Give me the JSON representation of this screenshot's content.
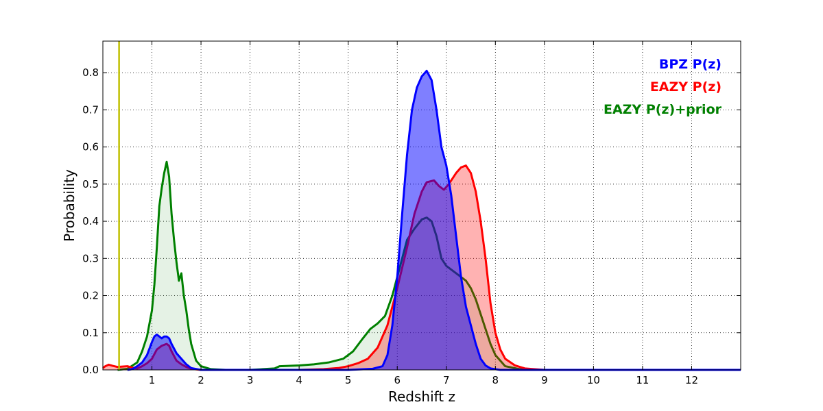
{
  "chart_data": {
    "type": "area",
    "xlabel": "Redshift z",
    "ylabel": "Probability",
    "xlim": [
      0,
      13
    ],
    "ylim": [
      0,
      0.885
    ],
    "xticks": [
      1,
      2,
      3,
      4,
      5,
      6,
      7,
      8,
      9,
      10,
      11,
      12
    ],
    "yticks": [
      0.0,
      0.1,
      0.2,
      0.3,
      0.4,
      0.5,
      0.6,
      0.7,
      0.8
    ],
    "grid": true,
    "legend_placement": "top-right",
    "vline": {
      "x": 0.33,
      "color": "#bfbf00"
    },
    "series": [
      {
        "name": "EAZY P(z)+prior",
        "color": "#008000",
        "fill": "#008000",
        "fill_opacity": 0.1,
        "points": [
          [
            0.3,
            0.0
          ],
          [
            0.5,
            0.003
          ],
          [
            0.7,
            0.02
          ],
          [
            0.8,
            0.05
          ],
          [
            0.9,
            0.09
          ],
          [
            1.0,
            0.16
          ],
          [
            1.05,
            0.23
          ],
          [
            1.1,
            0.33
          ],
          [
            1.15,
            0.44
          ],
          [
            1.2,
            0.49
          ],
          [
            1.25,
            0.53
          ],
          [
            1.3,
            0.56
          ],
          [
            1.35,
            0.52
          ],
          [
            1.4,
            0.42
          ],
          [
            1.45,
            0.35
          ],
          [
            1.5,
            0.29
          ],
          [
            1.55,
            0.24
          ],
          [
            1.6,
            0.26
          ],
          [
            1.65,
            0.2
          ],
          [
            1.7,
            0.16
          ],
          [
            1.75,
            0.11
          ],
          [
            1.8,
            0.07
          ],
          [
            1.9,
            0.025
          ],
          [
            2.0,
            0.01
          ],
          [
            2.2,
            0.002
          ],
          [
            2.5,
            0.0
          ],
          [
            3.0,
            0.0
          ],
          [
            3.5,
            0.004
          ],
          [
            3.6,
            0.01
          ],
          [
            4.0,
            0.012
          ],
          [
            4.3,
            0.015
          ],
          [
            4.6,
            0.02
          ],
          [
            4.9,
            0.03
          ],
          [
            5.1,
            0.05
          ],
          [
            5.3,
            0.085
          ],
          [
            5.45,
            0.11
          ],
          [
            5.6,
            0.125
          ],
          [
            5.75,
            0.145
          ],
          [
            5.9,
            0.2
          ],
          [
            6.0,
            0.25
          ],
          [
            6.1,
            0.3
          ],
          [
            6.2,
            0.35
          ],
          [
            6.35,
            0.38
          ],
          [
            6.5,
            0.405
          ],
          [
            6.6,
            0.41
          ],
          [
            6.7,
            0.4
          ],
          [
            6.8,
            0.36
          ],
          [
            6.9,
            0.3
          ],
          [
            7.0,
            0.28
          ],
          [
            7.2,
            0.26
          ],
          [
            7.4,
            0.24
          ],
          [
            7.5,
            0.22
          ],
          [
            7.6,
            0.19
          ],
          [
            7.7,
            0.15
          ],
          [
            7.8,
            0.11
          ],
          [
            7.9,
            0.07
          ],
          [
            8.0,
            0.04
          ],
          [
            8.2,
            0.01
          ],
          [
            8.5,
            0.002
          ],
          [
            9.0,
            0.0
          ],
          [
            13.0,
            0.0
          ]
        ]
      },
      {
        "name": "EAZY P(z)",
        "color": "#ff0000",
        "fill": "#ff0000",
        "fill_opacity": 0.3,
        "points": [
          [
            0.0,
            0.005
          ],
          [
            0.05,
            0.01
          ],
          [
            0.12,
            0.014
          ],
          [
            0.2,
            0.011
          ],
          [
            0.3,
            0.008
          ],
          [
            0.4,
            0.009
          ],
          [
            0.5,
            0.01
          ],
          [
            0.6,
            0.006
          ],
          [
            0.7,
            0.004
          ],
          [
            0.8,
            0.01
          ],
          [
            0.9,
            0.018
          ],
          [
            1.0,
            0.03
          ],
          [
            1.1,
            0.055
          ],
          [
            1.2,
            0.065
          ],
          [
            1.3,
            0.07
          ],
          [
            1.35,
            0.065
          ],
          [
            1.4,
            0.05
          ],
          [
            1.5,
            0.025
          ],
          [
            1.6,
            0.015
          ],
          [
            1.7,
            0.008
          ],
          [
            1.8,
            0.003
          ],
          [
            2.0,
            0.0
          ],
          [
            3.0,
            0.0
          ],
          [
            4.0,
            0.0
          ],
          [
            4.5,
            0.002
          ],
          [
            4.8,
            0.005
          ],
          [
            5.0,
            0.01
          ],
          [
            5.2,
            0.018
          ],
          [
            5.4,
            0.03
          ],
          [
            5.6,
            0.06
          ],
          [
            5.8,
            0.12
          ],
          [
            6.0,
            0.22
          ],
          [
            6.2,
            0.33
          ],
          [
            6.35,
            0.42
          ],
          [
            6.5,
            0.48
          ],
          [
            6.6,
            0.505
          ],
          [
            6.75,
            0.51
          ],
          [
            6.85,
            0.495
          ],
          [
            6.95,
            0.485
          ],
          [
            7.05,
            0.5
          ],
          [
            7.2,
            0.53
          ],
          [
            7.3,
            0.545
          ],
          [
            7.4,
            0.55
          ],
          [
            7.5,
            0.53
          ],
          [
            7.6,
            0.48
          ],
          [
            7.7,
            0.4
          ],
          [
            7.8,
            0.3
          ],
          [
            7.9,
            0.18
          ],
          [
            8.0,
            0.1
          ],
          [
            8.1,
            0.055
          ],
          [
            8.2,
            0.03
          ],
          [
            8.4,
            0.012
          ],
          [
            8.6,
            0.004
          ],
          [
            9.0,
            0.0
          ],
          [
            13.0,
            0.0
          ]
        ]
      },
      {
        "name": "BPZ P(z)",
        "color": "#0000ff",
        "fill": "#0000ff",
        "fill_opacity": 0.5,
        "points": [
          [
            0.5,
            0.0
          ],
          [
            0.6,
            0.002
          ],
          [
            0.7,
            0.01
          ],
          [
            0.8,
            0.02
          ],
          [
            0.9,
            0.04
          ],
          [
            1.0,
            0.075
          ],
          [
            1.05,
            0.09
          ],
          [
            1.1,
            0.095
          ],
          [
            1.15,
            0.09
          ],
          [
            1.2,
            0.085
          ],
          [
            1.25,
            0.09
          ],
          [
            1.3,
            0.09
          ],
          [
            1.35,
            0.085
          ],
          [
            1.4,
            0.07
          ],
          [
            1.5,
            0.045
          ],
          [
            1.6,
            0.03
          ],
          [
            1.7,
            0.015
          ],
          [
            1.8,
            0.005
          ],
          [
            2.0,
            0.0
          ],
          [
            5.0,
            0.0
          ],
          [
            5.5,
            0.003
          ],
          [
            5.7,
            0.01
          ],
          [
            5.8,
            0.04
          ],
          [
            5.9,
            0.12
          ],
          [
            6.0,
            0.25
          ],
          [
            6.1,
            0.42
          ],
          [
            6.2,
            0.58
          ],
          [
            6.3,
            0.7
          ],
          [
            6.4,
            0.76
          ],
          [
            6.5,
            0.79
          ],
          [
            6.6,
            0.805
          ],
          [
            6.7,
            0.78
          ],
          [
            6.8,
            0.7
          ],
          [
            6.9,
            0.6
          ],
          [
            7.0,
            0.55
          ],
          [
            7.1,
            0.47
          ],
          [
            7.2,
            0.36
          ],
          [
            7.3,
            0.25
          ],
          [
            7.4,
            0.17
          ],
          [
            7.5,
            0.12
          ],
          [
            7.6,
            0.07
          ],
          [
            7.7,
            0.03
          ],
          [
            7.8,
            0.012
          ],
          [
            7.9,
            0.004
          ],
          [
            8.1,
            0.0
          ],
          [
            13.0,
            0.0
          ]
        ]
      }
    ],
    "legend": [
      {
        "label": "BPZ P(z)",
        "color": "#0000ff"
      },
      {
        "label": "EAZY P(z)",
        "color": "#ff0000"
      },
      {
        "label": "EAZY P(z)+prior",
        "color": "#008000"
      }
    ]
  }
}
